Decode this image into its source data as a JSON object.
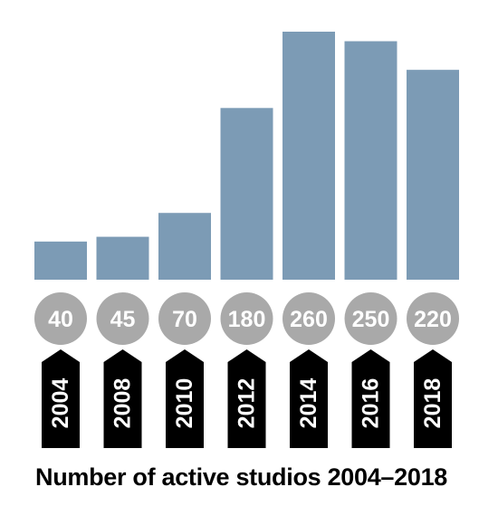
{
  "chart_data": {
    "type": "bar",
    "title": "Number of active studios 2004–2018",
    "categories": [
      "2004",
      "2008",
      "2010",
      "2012",
      "2014",
      "2016",
      "2018"
    ],
    "values": [
      40,
      45,
      70,
      180,
      260,
      250,
      220
    ],
    "value_labels": [
      "40",
      "45",
      "70",
      "180",
      "260",
      "250",
      "220"
    ],
    "ylim": [
      0,
      260
    ],
    "grid": false,
    "legend": "none",
    "colors": {
      "bar": "#7c9bb5",
      "value_circle": "#a9a9a9",
      "year_tag": "#000000",
      "label_text": "#ffffff"
    }
  }
}
